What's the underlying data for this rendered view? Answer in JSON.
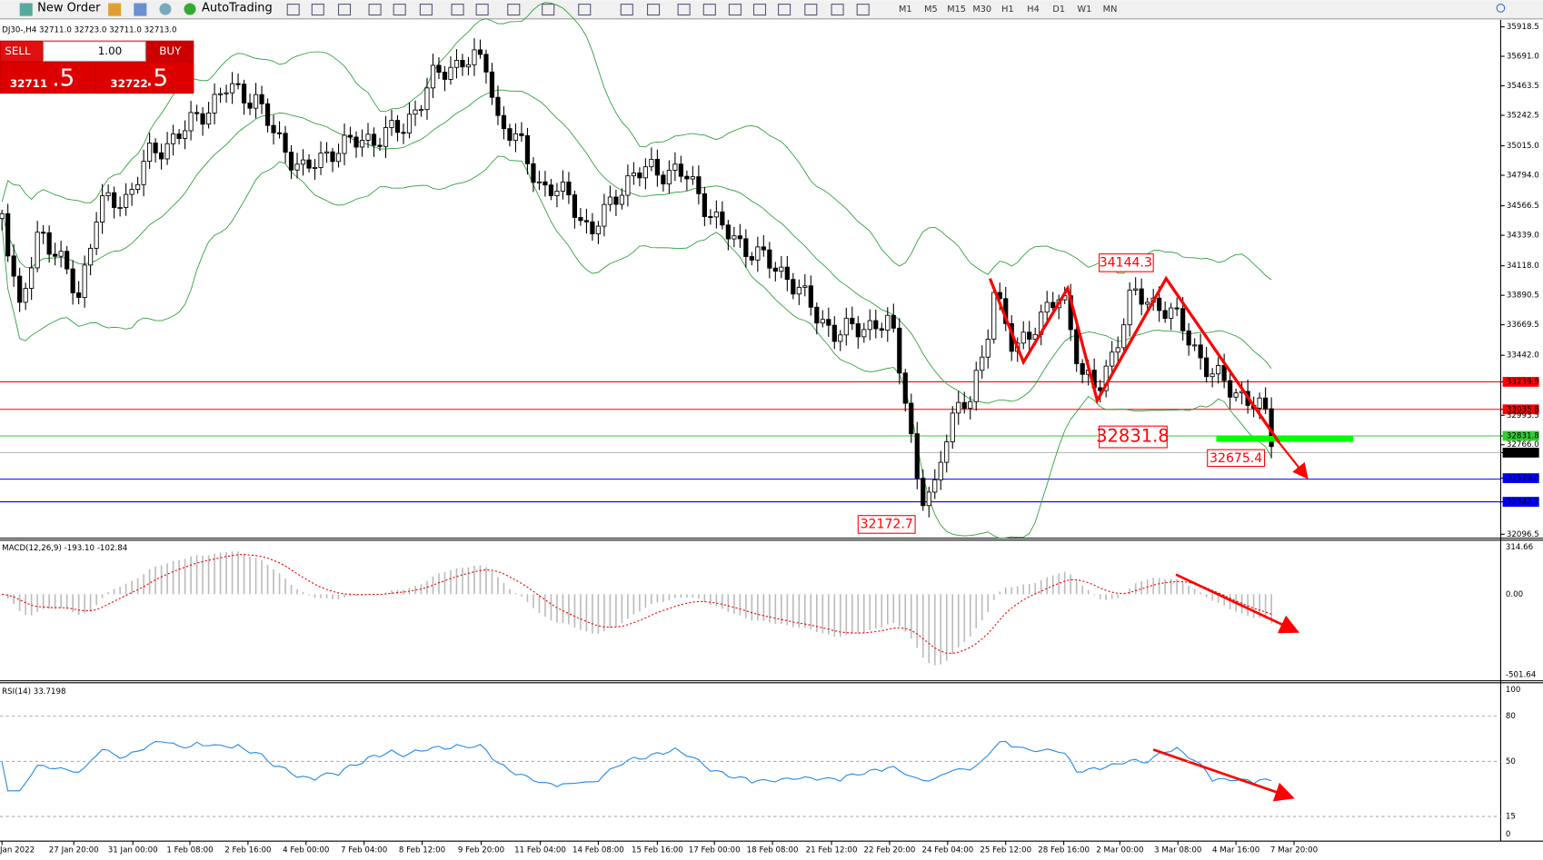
{
  "toolbar": {
    "new_order": "New Order",
    "auto_trading": "AutoTrading",
    "timeframes": [
      "M1",
      "M5",
      "M15",
      "M30",
      "H1",
      "H4",
      "D1",
      "W1",
      "MN"
    ]
  },
  "chart": {
    "header": "DJ30-,H4  32711.0 32723.0 32711.0 32713.0",
    "one_click": {
      "sell": "SELL",
      "buy": "BUY",
      "lots": "1.00",
      "sell_price": "32711",
      "sell_pips": ".5",
      "buy_price": "32722",
      "buy_pips": ".5"
    },
    "price_scale": [
      "35918.5",
      "35691.0",
      "35463.5",
      "35242.5",
      "35015.0",
      "34794.0",
      "34566.5",
      "34339.0",
      "34118.0",
      "33890.5",
      "33669.5",
      "33442.0",
      "33239.9",
      "33035.8",
      "32993.5",
      "32831.8",
      "32766.0",
      "32713.0",
      "32519.0",
      "32342.2",
      "32096.5"
    ],
    "annotations": [
      "34144.3",
      "32831.8",
      "32675.4",
      "32172.7"
    ]
  },
  "macd": {
    "label": "MACD(12,26,9) -193.10 -102.84",
    "scale": [
      "314.66",
      "0.00",
      "-501.64"
    ]
  },
  "rsi": {
    "label": "RSI(14) 33.7198",
    "scale": [
      "100",
      "80",
      "50",
      "15",
      "0"
    ]
  },
  "time_axis": [
    "Jan 2022",
    "27 Jan 20:00",
    "31 Jan 00:00",
    "1 Feb 08:00",
    "2 Feb 16:00",
    "4 Feb 00:00",
    "7 Feb 04:00",
    "8 Feb 12:00",
    "9 Feb 20:00",
    "11 Feb 04:00",
    "14 Feb 08:00",
    "15 Feb 16:00",
    "17 Feb 00:00",
    "18 Feb 08:00",
    "21 Feb 12:00",
    "22 Feb 20:00",
    "24 Feb 04:00",
    "25 Feb 12:00",
    "28 Feb 16:00",
    "2 Mar 00:00",
    "3 Mar 08:00",
    "4 Mar 16:00",
    "7 Mar 20:00"
  ]
}
